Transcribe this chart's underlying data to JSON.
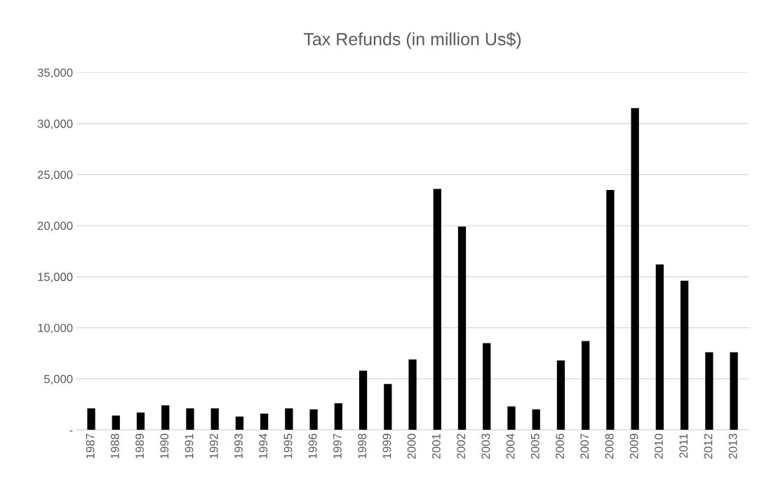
{
  "chart_data": {
    "type": "bar",
    "title": "Tax Refunds (in million Us$)",
    "categories": [
      "1987",
      "1988",
      "1989",
      "1990",
      "1991",
      "1992",
      "1993",
      "1994",
      "1995",
      "1996",
      "1997",
      "1998",
      "1999",
      "2000",
      "2001",
      "2002",
      "2003",
      "2004",
      "2005",
      "2006",
      "2007",
      "2008",
      "2009",
      "2010",
      "2011",
      "2012",
      "2013"
    ],
    "values": [
      2100,
      1400,
      1700,
      2400,
      2100,
      2100,
      1300,
      1600,
      2100,
      2000,
      2600,
      5800,
      4500,
      6900,
      23600,
      19900,
      8500,
      2300,
      2000,
      6800,
      8700,
      23500,
      31500,
      16200,
      14600,
      7600,
      7600
    ],
    "color": "#000000",
    "ylim": [
      0,
      35000
    ],
    "yticks": [
      {
        "value": 0,
        "label": "-"
      },
      {
        "value": 5000,
        "label": "5,000"
      },
      {
        "value": 10000,
        "label": "10,000"
      },
      {
        "value": 15000,
        "label": "15,000"
      },
      {
        "value": 20000,
        "label": "20,000"
      },
      {
        "value": 25000,
        "label": "25,000"
      },
      {
        "value": 30000,
        "label": "30,000"
      },
      {
        "value": 35000,
        "label": "35,000"
      }
    ],
    "grid": "y",
    "legend": false
  }
}
